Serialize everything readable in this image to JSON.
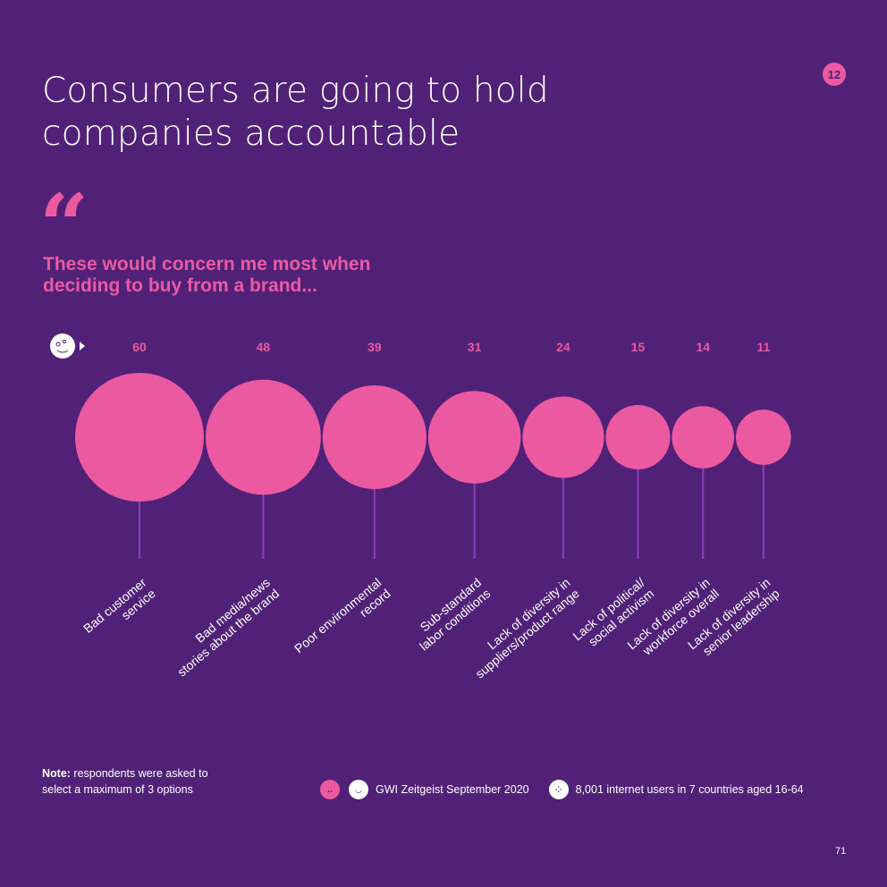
{
  "header": {
    "title_line1": "Consumers are going to hold",
    "title_line2": "companies accountable",
    "badge": "12"
  },
  "quote": {
    "mark": "“",
    "text_line1": "These would concern me most when",
    "text_line2": "deciding to buy from a brand..."
  },
  "chart_data": {
    "type": "bubble",
    "title": "These would concern me most when deciding to buy from a brand...",
    "unit": "%",
    "categories": [
      [
        "Bad customer",
        "service"
      ],
      [
        "Bad media/news",
        "stories about the brand"
      ],
      [
        "Poor environmental",
        "record"
      ],
      [
        "Sub-standard",
        "labor conditions"
      ],
      [
        "Lack of diversity in",
        "suppliers/product range"
      ],
      [
        "Lack of political/",
        "social activism"
      ],
      [
        "Lack of diversity in",
        "workforce overall"
      ],
      [
        "Lack of diversity in",
        "senior leadership"
      ]
    ],
    "values": [
      60,
      48,
      39,
      31,
      24,
      15,
      14,
      11
    ]
  },
  "colors": {
    "background": "#512178",
    "accent": "#eb5aa0",
    "stem": "#8a3fbf",
    "text": "#ffffff"
  },
  "footer": {
    "note_label": "Note:",
    "note_text_line1": " respondents were asked to",
    "note_text_line2": "select a maximum of 3 options",
    "source": "GWI Zeitgeist September 2020",
    "sample": "8,001 internet users in 7 countries aged 16-64",
    "page_number": "71"
  }
}
